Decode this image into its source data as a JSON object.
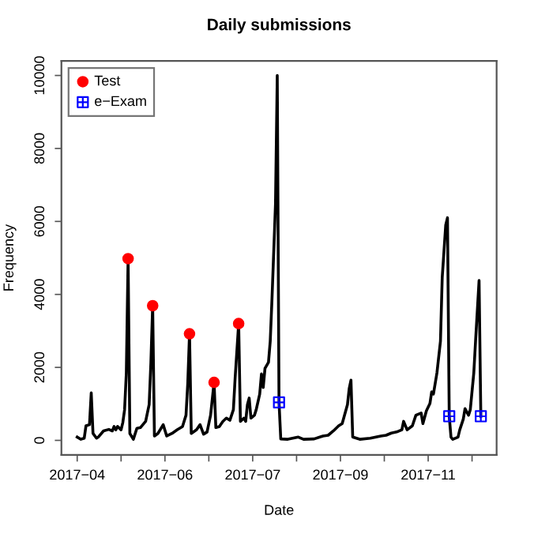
{
  "chart_data": {
    "type": "line",
    "title": "Daily submissions",
    "xlabel": "Date",
    "ylabel": "Frequency",
    "xlim": [
      "2017-04-06",
      "2017-12-10"
    ],
    "ylim": [
      -400,
      10400
    ],
    "yticks": [
      0,
      2000,
      4000,
      6000,
      8000,
      10000
    ],
    "xticks": [
      {
        "value": "2017-04-15",
        "label": "2017−04"
      },
      {
        "value": "2017-05-10",
        "label": null
      },
      {
        "value": "2017-06-04",
        "label": "2017−06"
      },
      {
        "value": "2017-06-29",
        "label": null
      },
      {
        "value": "2017-07-24",
        "label": "2017−07"
      },
      {
        "value": "2017-08-18",
        "label": null
      },
      {
        "value": "2017-09-12",
        "label": "2017−09"
      },
      {
        "value": "2017-10-07",
        "label": null
      },
      {
        "value": "2017-11-01",
        "label": "2017−11"
      },
      {
        "value": "2017-11-26",
        "label": null
      }
    ],
    "grid": false,
    "legend": "top left",
    "series": [
      {
        "color": "#000000",
        "marker": "none",
        "x": [
          "2017-04-15",
          "2017-04-17",
          "2017-04-19",
          "2017-04-20",
          "2017-04-22",
          "2017-04-23",
          "2017-04-24",
          "2017-04-26",
          "2017-04-27",
          "2017-04-30",
          "2017-05-03",
          "2017-05-05",
          "2017-05-06",
          "2017-05-07",
          "2017-05-08",
          "2017-05-10",
          "2017-05-11",
          "2017-05-12",
          "2017-05-13",
          "2017-05-14",
          "2017-05-15",
          "2017-05-17",
          "2017-05-19",
          "2017-05-21",
          "2017-05-24",
          "2017-05-26",
          "2017-05-27",
          "2017-05-28",
          "2017-05-29",
          "2017-05-31",
          "2017-06-03",
          "2017-06-05",
          "2017-06-08",
          "2017-06-11",
          "2017-06-14",
          "2017-06-16",
          "2017-06-17",
          "2017-06-18",
          "2017-06-19",
          "2017-06-22",
          "2017-06-24",
          "2017-06-26",
          "2017-06-28",
          "2017-06-30",
          "2017-07-02",
          "2017-07-03",
          "2017-07-05",
          "2017-07-07",
          "2017-07-09",
          "2017-07-11",
          "2017-07-13",
          "2017-07-14",
          "2017-07-16",
          "2017-07-17",
          "2017-07-19",
          "2017-07-20",
          "2017-07-21",
          "2017-07-22",
          "2017-07-23",
          "2017-07-25",
          "2017-07-26",
          "2017-07-28",
          "2017-07-29",
          "2017-07-30",
          "2017-07-31",
          "2017-08-02",
          "2017-08-03",
          "2017-08-04",
          "2017-08-06",
          "2017-08-07",
          "2017-08-08",
          "2017-08-09",
          "2017-08-13",
          "2017-08-19",
          "2017-08-22",
          "2017-08-28",
          "2017-09-02",
          "2017-09-05",
          "2017-09-08",
          "2017-09-11",
          "2017-09-13",
          "2017-09-16",
          "2017-09-17",
          "2017-09-18",
          "2017-09-19",
          "2017-09-23",
          "2017-09-29",
          "2017-10-05",
          "2017-10-08",
          "2017-10-11",
          "2017-10-14",
          "2017-10-17",
          "2017-10-18",
          "2017-10-20",
          "2017-10-23",
          "2017-10-25",
          "2017-10-28",
          "2017-10-29",
          "2017-10-31",
          "2017-11-02",
          "2017-11-03",
          "2017-11-04",
          "2017-11-06",
          "2017-11-08",
          "2017-11-09",
          "2017-11-11",
          "2017-11-12",
          "2017-11-13",
          "2017-11-14",
          "2017-11-15",
          "2017-11-18",
          "2017-11-19",
          "2017-11-21",
          "2017-11-22",
          "2017-11-24",
          "2017-11-25",
          "2017-11-27",
          "2017-11-28",
          "2017-11-30",
          "2017-12-01"
        ],
        "values": [
          90,
          30,
          60,
          400,
          430,
          1300,
          190,
          60,
          90,
          260,
          300,
          260,
          380,
          290,
          380,
          290,
          490,
          840,
          1850,
          4980,
          190,
          30,
          330,
          350,
          520,
          980,
          2140,
          3690,
          120,
          190,
          430,
          120,
          190,
          290,
          380,
          690,
          1560,
          2920,
          190,
          290,
          430,
          170,
          230,
          690,
          1590,
          350,
          380,
          520,
          610,
          550,
          840,
          1710,
          3200,
          520,
          610,
          520,
          980,
          1160,
          610,
          690,
          840,
          1270,
          1820,
          1450,
          1970,
          2140,
          2720,
          3880,
          6480,
          10000,
          1040,
          40,
          30,
          90,
          30,
          40,
          120,
          140,
          260,
          400,
          460,
          980,
          1420,
          1650,
          90,
          30,
          60,
          120,
          140,
          200,
          230,
          290,
          520,
          290,
          400,
          690,
          750,
          460,
          810,
          1010,
          1330,
          1270,
          1850,
          2720,
          4460,
          5900,
          6100,
          660,
          90,
          30,
          90,
          290,
          580,
          870,
          690,
          840,
          1850,
          2720,
          4380,
          660
        ]
      },
      {
        "type": "scatter",
        "name": "Test",
        "color": "#ff0000",
        "marker": "circle",
        "x": [
          "2017-05-14",
          "2017-05-28",
          "2017-06-18",
          "2017-07-02",
          "2017-07-16"
        ],
        "values": [
          4980,
          3690,
          2920,
          1590,
          3200
        ]
      },
      {
        "type": "scatter",
        "name": "e−Exam",
        "color": "#0000ff",
        "marker": "square",
        "x": [
          "2017-08-08",
          "2017-11-13",
          "2017-12-01"
        ],
        "values": [
          1040,
          660,
          660
        ]
      }
    ]
  }
}
